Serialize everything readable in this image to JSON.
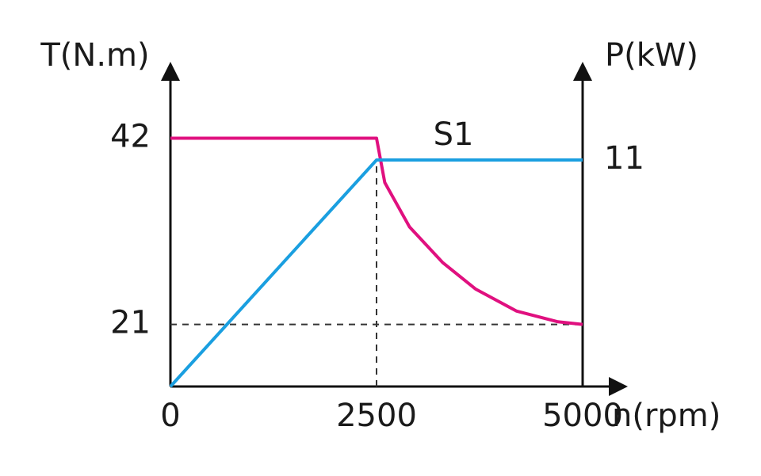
{
  "chart_data": {
    "type": "line",
    "xlabel": "n(rpm)",
    "ylabel": "T(N.m)",
    "y2label": "P(kW)",
    "annotation": "S1",
    "xlim": [
      0,
      5000
    ],
    "xticks": [
      0,
      2500,
      5000
    ],
    "ylim": [
      14,
      50
    ],
    "yticks": [
      21,
      42
    ],
    "y2lim": [
      0,
      15.5
    ],
    "y2ticks": [
      11
    ],
    "series": [
      {
        "name": "T",
        "color": "#e0107f",
        "x": [
          0,
          2500,
          2600,
          2900,
          3300,
          3700,
          4200,
          4700,
          5000
        ],
        "values": [
          42,
          42,
          37,
          32,
          28,
          25,
          22.5,
          21.3,
          21
        ]
      },
      {
        "name": "P",
        "color": "#1a9fe0",
        "axis": "y2",
        "x": [
          0,
          2500,
          5000
        ],
        "values": [
          0,
          11,
          11
        ]
      }
    ]
  }
}
